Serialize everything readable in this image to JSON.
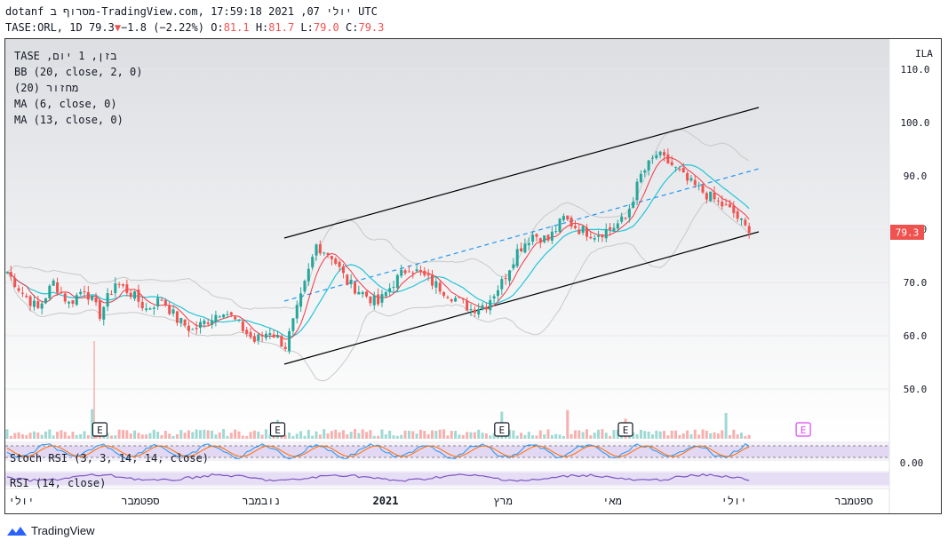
{
  "header": {
    "line1": "dotanf מסרוף ב-TradingView.com, יולי 07, 2021 17:59:18 UTC",
    "symbol": "TASE:ORL, 1D",
    "price": "79.3",
    "change": "−1.8 (−2.22%)",
    "o_label": "O:",
    "o": "81.1",
    "h_label": "H:",
    "h": "81.7",
    "l_label": "L:",
    "l": "79.0",
    "c_label": "C:",
    "c": "79.3"
  },
  "legend": {
    "symbol_line": "TASE ,בזן, 1 יום",
    "bb": "BB (20, close, 2, 0)",
    "volume": "מחזור (20)",
    "ma6": "MA (6, close, 0)",
    "ma13": "MA (13, close, 0)"
  },
  "indicators": {
    "stoch_label": "Stoch RSI (3, 3, 14, 14, close)",
    "stoch_value": "0.00",
    "rsi_label": "RSI (14, close)"
  },
  "currency": "ILA",
  "last_price_tag": "79.3",
  "earnings_marker": "E",
  "footer_brand": "TradingView",
  "colors": {
    "up": "#26a69a",
    "down": "#ef5350",
    "ma_fast": "#f23645",
    "ma_slow": "#22c5d8",
    "bands": "#c8c8c8",
    "trend_line": "#000000",
    "mid_line": "#2196f3",
    "stoch_k": "#2196f3",
    "stoch_d": "#ff6d00",
    "rsi": "#7e57c2",
    "indicator_band": "#d8c8f0",
    "price_tag": "#ef5350"
  },
  "chart_data": {
    "type": "candlestick",
    "y_axis": {
      "ticks": [
        "110.0",
        "100.0",
        "90.0",
        "80.0",
        "70.0",
        "60.0",
        "50.0"
      ],
      "range": [
        42,
        112
      ]
    },
    "x_axis": {
      "ticks": [
        "יולי",
        "ספטמבר",
        "נובמבר",
        "2021",
        "מרץ",
        "מאי",
        "יולי",
        "ספטמבר"
      ]
    },
    "close_path": [
      [
        0,
        72
      ],
      [
        4,
        68
      ],
      [
        8,
        65
      ],
      [
        12,
        70
      ],
      [
        16,
        66
      ],
      [
        20,
        69
      ],
      [
        24,
        64
      ],
      [
        28,
        70
      ],
      [
        32,
        68
      ],
      [
        36,
        65
      ],
      [
        40,
        67
      ],
      [
        44,
        63
      ],
      [
        48,
        61
      ],
      [
        52,
        63
      ],
      [
        56,
        65
      ],
      [
        60,
        62
      ],
      [
        64,
        59
      ],
      [
        68,
        61
      ],
      [
        72,
        58
      ],
      [
        76,
        67
      ],
      [
        80,
        77
      ],
      [
        84,
        75
      ],
      [
        88,
        70
      ],
      [
        92,
        68
      ],
      [
        96,
        66
      ],
      [
        100,
        70
      ],
      [
        104,
        73
      ],
      [
        108,
        71
      ],
      [
        112,
        69
      ],
      [
        116,
        67
      ],
      [
        120,
        65
      ],
      [
        124,
        66
      ],
      [
        128,
        70
      ],
      [
        132,
        76
      ],
      [
        136,
        79
      ],
      [
        140,
        78
      ],
      [
        144,
        82
      ],
      [
        148,
        80
      ],
      [
        152,
        79
      ],
      [
        156,
        80
      ],
      [
        160,
        82
      ],
      [
        164,
        90
      ],
      [
        168,
        94
      ],
      [
        172,
        92
      ],
      [
        176,
        89
      ],
      [
        180,
        87
      ],
      [
        184,
        85
      ],
      [
        188,
        83
      ],
      [
        192,
        79.3
      ]
    ],
    "earnings_x": [
      24,
      70,
      128,
      160,
      206
    ]
  }
}
